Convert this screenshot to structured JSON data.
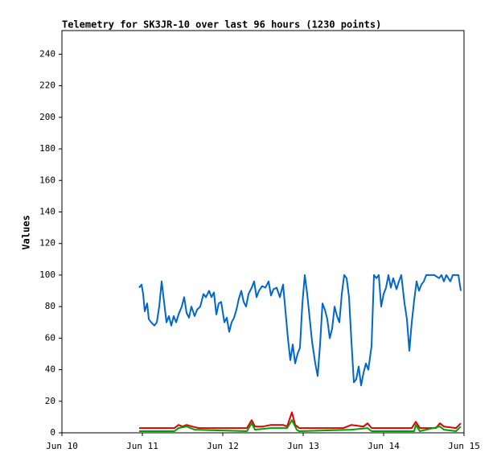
{
  "chart_data": {
    "type": "line",
    "title": "Telemetry for SK3JR-10 over last 96 hours (1230 points)",
    "y_label": "Values",
    "xlim": [
      10,
      15
    ],
    "xticks": [
      {
        "value": 10,
        "label": "Jun 10"
      },
      {
        "value": 11,
        "label": "Jun 11"
      },
      {
        "value": 12,
        "label": "Jun 12"
      },
      {
        "value": 13,
        "label": "Jun 13"
      },
      {
        "value": 14,
        "label": "Jun 14"
      },
      {
        "value": 15,
        "label": "Jun 15"
      }
    ],
    "ylim": [
      0,
      255
    ],
    "yticks": [
      0,
      20,
      40,
      60,
      80,
      100,
      120,
      140,
      160,
      180,
      200,
      220,
      240
    ],
    "series": [
      {
        "color": "#e00000",
        "x": [
          10.96,
          11.4,
          11.45,
          11.5,
          11.55,
          11.62,
          11.7,
          12.3,
          12.36,
          12.4,
          12.5,
          12.6,
          12.75,
          12.8,
          12.86,
          12.9,
          12.95,
          13.5,
          13.6,
          13.75,
          13.8,
          13.85,
          14.35,
          14.4,
          14.45,
          14.65,
          14.7,
          14.75,
          14.9,
          14.96
        ],
        "values": [
          3,
          3,
          5,
          4,
          5,
          4,
          3,
          3,
          8,
          4,
          4,
          5,
          5,
          4,
          13,
          5,
          3,
          3,
          5,
          4,
          6,
          3,
          3,
          7,
          3,
          3,
          6,
          4,
          3,
          6
        ]
      },
      {
        "color": "#00a000",
        "x": [
          10.96,
          11.4,
          11.45,
          11.55,
          11.65,
          12.3,
          12.36,
          12.4,
          12.6,
          12.8,
          12.86,
          12.92,
          12.95,
          13.6,
          13.8,
          13.85,
          14.38,
          14.4,
          14.45,
          14.7,
          14.75,
          14.9,
          14.96
        ],
        "values": [
          1,
          1,
          3,
          4,
          2,
          1,
          6,
          2,
          3,
          3,
          8,
          2,
          1,
          2,
          3,
          1,
          1,
          5,
          1,
          4,
          2,
          1,
          4
        ]
      },
      {
        "color": "#0066cc",
        "x": [
          10.96,
          10.99,
          11.01,
          11.03,
          11.06,
          11.08,
          11.11,
          11.15,
          11.18,
          11.21,
          11.24,
          11.27,
          11.3,
          11.33,
          11.36,
          11.39,
          11.42,
          11.45,
          11.49,
          11.52,
          11.55,
          11.58,
          11.61,
          11.65,
          11.68,
          11.72,
          11.76,
          11.79,
          11.83,
          11.86,
          11.89,
          11.92,
          11.95,
          11.98,
          12.02,
          12.05,
          12.08,
          12.11,
          12.14,
          12.17,
          12.2,
          12.23,
          12.26,
          12.29,
          12.32,
          12.36,
          12.39,
          12.42,
          12.45,
          12.49,
          12.53,
          12.57,
          12.6,
          12.63,
          12.67,
          12.71,
          12.75,
          12.78,
          12.81,
          12.84,
          12.87,
          12.9,
          12.93,
          12.96,
          12.99,
          13.02,
          13.05,
          13.08,
          13.11,
          13.15,
          13.18,
          13.21,
          13.24,
          13.27,
          13.3,
          13.33,
          13.36,
          13.39,
          13.42,
          13.45,
          13.48,
          13.51,
          13.54,
          13.57,
          13.6,
          13.63,
          13.66,
          13.69,
          13.72,
          13.75,
          13.78,
          13.81,
          13.85,
          13.88,
          13.91,
          13.94,
          13.97,
          14.0,
          14.03,
          14.06,
          14.09,
          14.12,
          14.16,
          14.19,
          14.22,
          14.26,
          14.29,
          14.32,
          14.35,
          14.38,
          14.41,
          14.44,
          14.47,
          14.5,
          14.53,
          14.63,
          14.69,
          14.72,
          14.75,
          14.78,
          14.83,
          14.86,
          14.93,
          14.96
        ],
        "values": [
          92,
          94,
          88,
          77,
          82,
          72,
          70,
          68,
          70,
          80,
          96,
          83,
          70,
          74,
          68,
          74,
          70,
          75,
          80,
          86,
          76,
          73,
          80,
          74,
          78,
          80,
          88,
          86,
          90,
          86,
          89,
          75,
          82,
          83,
          70,
          73,
          64,
          70,
          73,
          78,
          85,
          90,
          83,
          80,
          88,
          92,
          96,
          86,
          90,
          93,
          92,
          96,
          87,
          91,
          92,
          86,
          94,
          77,
          60,
          46,
          56,
          44,
          50,
          54,
          82,
          100,
          88,
          73,
          58,
          44,
          36,
          56,
          82,
          78,
          72,
          60,
          66,
          80,
          74,
          70,
          88,
          100,
          98,
          86,
          58,
          32,
          34,
          42,
          30,
          38,
          44,
          40,
          55,
          100,
          98,
          100,
          80,
          88,
          92,
          100,
          92,
          98,
          91,
          96,
          100,
          82,
          72,
          52,
          70,
          84,
          96,
          90,
          94,
          96,
          100,
          100,
          98,
          100,
          96,
          100,
          96,
          100,
          100,
          90
        ]
      }
    ]
  }
}
